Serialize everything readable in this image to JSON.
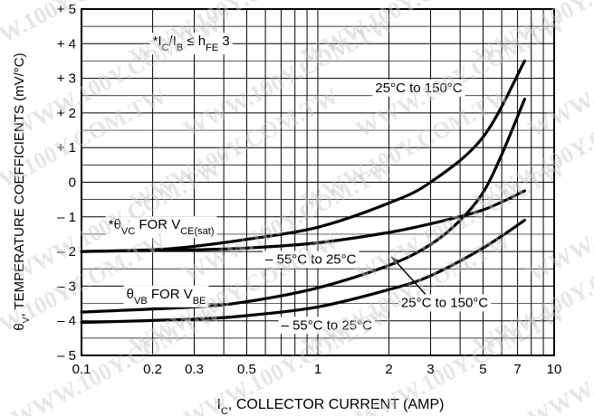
{
  "chart_data": {
    "type": "line",
    "title": "",
    "xlabel": "I_C, COLLECTOR CURRENT (AMP)",
    "ylabel": "θV, TEMPERATURE COEFFICIENTS (mV/°C)",
    "xscale": "log",
    "xlim": [
      0.1,
      10
    ],
    "ylim": [
      -5,
      5
    ],
    "x_ticks": [
      {
        "v": 0.1,
        "label": "0.1"
      },
      {
        "v": 0.2,
        "label": "0.2"
      },
      {
        "v": 0.3,
        "label": "0.3"
      },
      {
        "v": 0.5,
        "label": "0.5"
      },
      {
        "v": 1,
        "label": "1"
      },
      {
        "v": 2,
        "label": "2"
      },
      {
        "v": 3,
        "label": "3"
      },
      {
        "v": 5,
        "label": "5"
      },
      {
        "v": 7,
        "label": "7"
      },
      {
        "v": 10,
        "label": "10"
      }
    ],
    "y_ticks": [
      {
        "v": 5,
        "label": "+ 5"
      },
      {
        "v": 4,
        "label": "+ 4"
      },
      {
        "v": 3,
        "label": "+ 3"
      },
      {
        "v": 2,
        "label": "+ 2"
      },
      {
        "v": 1,
        "label": "+ 1"
      },
      {
        "v": 0,
        "label": "0"
      },
      {
        "v": -1,
        "label": "– 1"
      },
      {
        "v": -2,
        "label": "– 2"
      },
      {
        "v": -3,
        "label": "– 3"
      },
      {
        "v": -4,
        "label": "– 4"
      },
      {
        "v": -5,
        "label": "– 5"
      }
    ],
    "grid": true,
    "series": [
      {
        "x": [
          0.1,
          0.2,
          0.3,
          0.5,
          1,
          2,
          3,
          5,
          7.5
        ],
        "y": [
          -2.0,
          -1.95,
          -1.85,
          -1.65,
          -1.3,
          -0.6,
          0.0,
          1.3,
          3.5
        ]
      },
      {
        "x": [
          0.1,
          0.3,
          0.5,
          1,
          2,
          3,
          5,
          7.5
        ],
        "y": [
          -2.0,
          -1.95,
          -1.9,
          -1.75,
          -1.45,
          -1.2,
          -0.8,
          -0.25
        ]
      },
      {
        "x": [
          0.1,
          0.3,
          0.5,
          1,
          2,
          3,
          4,
          5,
          6,
          7.5
        ],
        "y": [
          -3.75,
          -3.6,
          -3.45,
          -3.05,
          -2.4,
          -1.8,
          -1.1,
          -0.3,
          0.8,
          2.4
        ]
      },
      {
        "x": [
          0.1,
          0.3,
          0.5,
          1,
          2,
          3,
          5,
          7.5
        ],
        "y": [
          -4.05,
          -3.95,
          -3.85,
          -3.6,
          -3.1,
          -2.7,
          -1.9,
          -1.1
        ]
      }
    ],
    "annotations": [
      {
        "text_parts": [
          "*I",
          "C",
          "/I",
          "B",
          " ≤ h",
          "FE",
          " 3"
        ],
        "x": 0.2,
        "y": 3.95
      },
      {
        "text_parts": [
          "25°C to 150°C"
        ],
        "x": 1.75,
        "y": 2.6
      },
      {
        "text_parts": [
          "*θ",
          "VC",
          " FOR V",
          "CE(sat)"
        ],
        "x": 0.13,
        "y": -1.35
      },
      {
        "text_parts": [
          "– 55°C to 25°C"
        ],
        "x": 0.6,
        "y": -2.35
      },
      {
        "text_parts": [
          "θ",
          "VB",
          " FOR V",
          "BE"
        ],
        "x": 0.155,
        "y": -3.35
      },
      {
        "text_parts": [
          "25°C to 150°C"
        ],
        "x": 2.25,
        "y": -3.6
      },
      {
        "text_parts": [
          "– 55°C to 25°C"
        ],
        "x": 0.7,
        "y": -4.25
      }
    ],
    "pointer": {
      "from": [
        3.0,
        -3.4
      ],
      "to": [
        2.05,
        -2.15
      ]
    }
  }
}
